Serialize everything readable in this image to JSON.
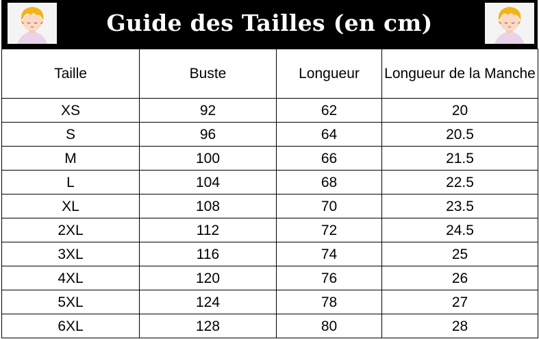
{
  "header": {
    "title": "Guide des Tailles (en cm)",
    "colors": {
      "background": "#000000",
      "text": "#ffffff"
    },
    "left_image": "anime-character-avatar",
    "right_image": "anime-character-avatar"
  },
  "table": {
    "columns": [
      "Taille",
      "Buste",
      "Longueur",
      "Longueur de la Manche"
    ],
    "rows": [
      [
        "XS",
        "92",
        "62",
        "20"
      ],
      [
        "S",
        "96",
        "64",
        "20.5"
      ],
      [
        "M",
        "100",
        "66",
        "21.5"
      ],
      [
        "L",
        "104",
        "68",
        "22.5"
      ],
      [
        "XL",
        "108",
        "70",
        "23.5"
      ],
      [
        "2XL",
        "112",
        "72",
        "24.5"
      ],
      [
        "3XL",
        "116",
        "74",
        "25"
      ],
      [
        "4XL",
        "120",
        "76",
        "26"
      ],
      [
        "5XL",
        "124",
        "78",
        "27"
      ],
      [
        "6XL",
        "128",
        "80",
        "28"
      ]
    ]
  }
}
